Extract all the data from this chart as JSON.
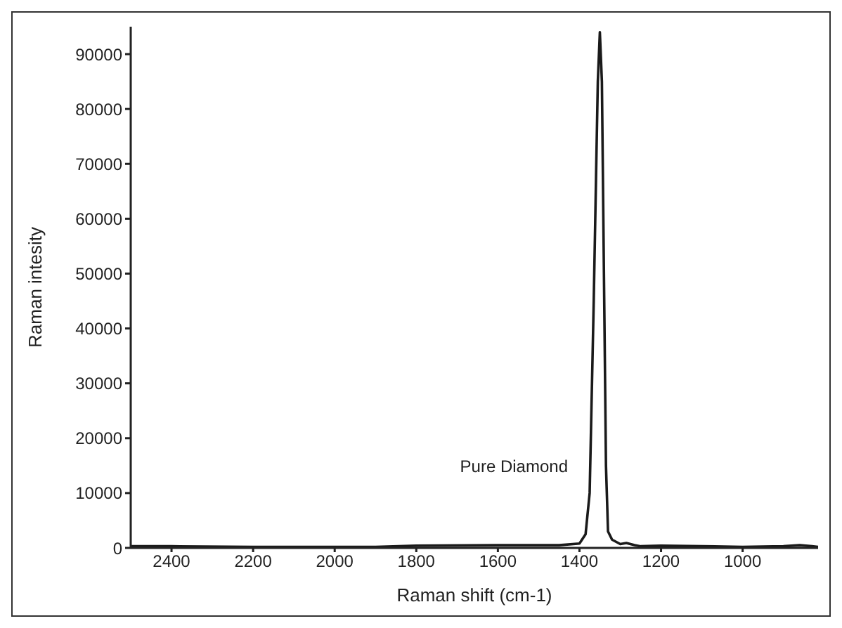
{
  "chart_data": {
    "type": "line",
    "xlabel": "Raman shift (cm-1)",
    "ylabel": "Raman intesity",
    "xlim": [
      2500,
      815
    ],
    "xticks": [
      2400,
      2200,
      2000,
      1800,
      1600,
      1400,
      1200,
      1000
    ],
    "ylim": [
      0,
      95000
    ],
    "yticks": [
      0,
      10000,
      20000,
      30000,
      40000,
      50000,
      60000,
      70000,
      80000,
      90000
    ],
    "grid": false,
    "marker": "none",
    "line_style": "solid",
    "annotations": [
      "Pure Diamond"
    ],
    "series": [
      {
        "color": "#1a1a1a",
        "x": [
          2500,
          2400,
          2200,
          2000,
          1900,
          1800,
          1600,
          1450,
          1400,
          1385,
          1375,
          1365,
          1355,
          1350,
          1345,
          1340,
          1335,
          1330,
          1320,
          1300,
          1285,
          1265,
          1250,
          1200,
          1100,
          1000,
          900,
          860,
          830,
          815
        ],
        "values": [
          300,
          300,
          200,
          200,
          200,
          400,
          500,
          500,
          800,
          2500,
          10000,
          45000,
          85000,
          94000,
          85000,
          50000,
          15000,
          3000,
          1500,
          700,
          900,
          500,
          300,
          400,
          300,
          200,
          300,
          500,
          300,
          200
        ]
      }
    ]
  }
}
